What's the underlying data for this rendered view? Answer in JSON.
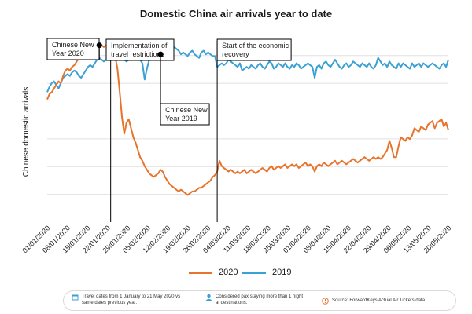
{
  "chart_data": {
    "type": "line",
    "title": "Domestic China air arrivals year to date",
    "ylabel": "Chinese domestic arrivals",
    "xlabel": "",
    "ylim": [
      0,
      100
    ],
    "x_tick_labels": [
      "01/01/2020",
      "08/01/2020",
      "15/01/2020",
      "22/01/2020",
      "29/01/2020",
      "05/02/2020",
      "12/02/2020",
      "19/02/2020",
      "26/02/2020",
      "04/03/2020",
      "11/03/2020",
      "18/03/2020",
      "25/03/2020",
      "01/04/2020",
      "08/04/2020",
      "15/04/2020",
      "22/04/2020",
      "29/04/2020",
      "06/05/2020",
      "13/05/2020",
      "20/05/2020"
    ],
    "series": [
      {
        "name": "2020",
        "color": "#e8732a",
        "values": [
          68,
          71,
          72,
          74,
          76,
          78,
          77,
          81,
          84,
          85,
          84,
          86,
          87,
          89,
          91,
          93,
          92,
          91,
          93,
          94,
          96,
          97,
          98,
          98,
          98,
          97,
          98,
          98,
          97,
          96,
          92,
          85,
          72,
          58,
          49,
          55,
          57,
          52,
          47,
          44,
          40,
          36,
          34,
          31,
          29,
          27,
          26,
          25,
          26,
          27,
          29,
          28,
          25,
          23,
          21,
          20,
          19,
          18,
          17,
          18,
          17,
          16,
          15,
          16,
          17,
          17,
          18,
          19,
          19,
          20,
          21,
          22,
          23,
          25,
          26,
          28,
          34,
          31,
          30,
          29,
          28,
          29,
          28,
          27,
          28,
          27,
          28,
          29,
          27,
          28,
          29,
          28,
          27,
          28,
          29,
          30,
          29,
          28,
          30,
          31,
          29,
          30,
          31,
          30,
          31,
          32,
          30,
          31,
          32,
          31,
          32,
          30,
          31,
          32,
          33,
          31,
          32,
          31,
          28,
          31,
          32,
          31,
          33,
          32,
          31,
          32,
          33,
          34,
          32,
          33,
          34,
          33,
          32,
          33,
          34,
          35,
          34,
          33,
          34,
          35,
          36,
          35,
          34,
          35,
          36,
          35,
          36,
          35,
          36,
          38,
          40,
          45,
          41,
          36,
          36,
          42,
          47,
          46,
          45,
          47,
          46,
          48,
          52,
          51,
          50,
          53,
          52,
          51,
          54,
          55,
          56,
          52,
          55,
          56,
          57,
          53,
          55,
          51
        ]
      },
      {
        "name": "2019",
        "color": "#3aa0d5",
        "values": [
          72,
          75,
          77,
          78,
          76,
          74,
          77,
          80,
          81,
          82,
          81,
          83,
          84,
          83,
          81,
          80,
          82,
          84,
          86,
          87,
          86,
          88,
          90,
          91,
          90,
          89,
          90,
          90,
          91,
          92,
          91,
          93,
          93,
          92,
          90,
          89,
          90,
          91,
          92,
          93,
          91,
          90,
          88,
          79,
          85,
          90,
          92,
          93,
          92,
          91,
          93,
          95,
          97,
          98,
          97,
          96,
          97,
          96,
          95,
          93,
          94,
          93,
          92,
          94,
          95,
          93,
          92,
          91,
          94,
          95,
          93,
          94,
          93,
          92,
          92,
          86,
          87,
          88,
          87,
          88,
          90,
          89,
          88,
          87,
          86,
          88,
          84,
          85,
          86,
          85,
          87,
          86,
          85,
          87,
          88,
          86,
          85,
          87,
          89,
          88,
          85,
          86,
          88,
          87,
          86,
          88,
          86,
          85,
          87,
          86,
          88,
          87,
          85,
          86,
          87,
          88,
          87,
          86,
          80,
          86,
          87,
          85,
          88,
          89,
          87,
          86,
          88,
          90,
          88,
          86,
          85,
          87,
          88,
          86,
          87,
          89,
          88,
          87,
          86,
          88,
          87,
          86,
          88,
          86,
          85,
          87,
          91,
          89,
          87,
          88,
          86,
          89,
          87,
          86,
          85,
          88,
          86,
          88,
          87,
          86,
          85,
          88,
          86,
          87,
          88,
          86,
          88,
          87,
          86,
          87,
          88,
          87,
          86,
          85,
          87,
          88,
          86,
          90
        ]
      }
    ],
    "annotations": [
      {
        "label": "Chinese New Year 2020",
        "marker_index": 23
      },
      {
        "label": "Implementation of travel restrictions",
        "line_index": 28
      },
      {
        "label": "Chinese New Year 2019",
        "marker_index": 50
      },
      {
        "label": "Start of the economic recovery",
        "line_index": 75
      }
    ],
    "legend": [
      {
        "name": "2020",
        "color": "#e8732a"
      },
      {
        "name": "2019",
        "color": "#3aa0d5"
      }
    ]
  },
  "footer": {
    "note1": "Travel dates from 1 January to 21 May 2020 vs same dates previous year.",
    "note2": "Considered pax staying more than 1 night at destinations.",
    "note3": "Source: ForwardKeys Actual Air Tickets data."
  }
}
